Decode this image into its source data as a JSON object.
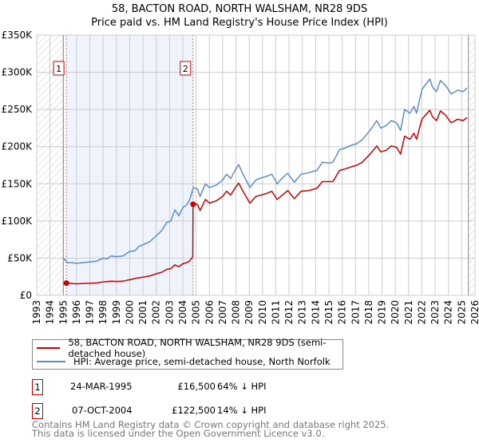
{
  "title_line1": "58, BACTON ROAD, NORTH WALSHAM, NR28 9DS",
  "title_line2": "Price paid vs. HM Land Registry's House Price Index (HPI)",
  "chart_data": {
    "type": "line",
    "title": "58, BACTON ROAD, NORTH WALSHAM, NR28 9DS — Price paid vs. HM Land Registry's House Price Index (HPI)",
    "xlim": [
      1993,
      2026
    ],
    "ylim": [
      0,
      350000
    ],
    "x_ticks": [
      "1993",
      "1994",
      "1995",
      "1996",
      "1997",
      "1998",
      "1999",
      "2000",
      "2001",
      "2002",
      "2003",
      "2004",
      "2005",
      "2006",
      "2007",
      "2008",
      "2009",
      "2010",
      "2011",
      "2012",
      "2013",
      "2014",
      "2015",
      "2016",
      "2017",
      "2018",
      "2019",
      "2020",
      "2021",
      "2022",
      "2023",
      "2024",
      "2025",
      "2026"
    ],
    "y_ticks": [
      {
        "v": 0,
        "label": "£0"
      },
      {
        "v": 50000,
        "label": "£50K"
      },
      {
        "v": 100000,
        "label": "£100K"
      },
      {
        "v": 150000,
        "label": "£150K"
      },
      {
        "v": 200000,
        "label": "£200K"
      },
      {
        "v": 250000,
        "label": "£250K"
      },
      {
        "v": 300000,
        "label": "£300K"
      },
      {
        "v": 350000,
        "label": "£350K"
      }
    ],
    "grid": true,
    "colors": {
      "property": "#cc0000",
      "hpi": "#5b8dd0",
      "shade": "#eef3fc",
      "sale_line": "#ee6666"
    },
    "hatched_before": 1995.0,
    "hatched_after": 2025.5,
    "series": [
      {
        "name": "58, BACTON ROAD, NORTH WALSHAM, NR28 9DS (semi-detached house)",
        "key": "property",
        "points": [
          [
            1995.23,
            16.5
          ],
          [
            1995.6,
            16
          ],
          [
            1996,
            15.5
          ],
          [
            1996.5,
            16
          ],
          [
            1997,
            16.2
          ],
          [
            1997.5,
            16.6
          ],
          [
            1998,
            18
          ],
          [
            1998.6,
            19
          ],
          [
            1999,
            18.7
          ],
          [
            1999.5,
            19
          ],
          [
            2000,
            21
          ],
          [
            2000.7,
            23.7
          ],
          [
            2001,
            24.5
          ],
          [
            2001.5,
            26
          ],
          [
            2002,
            29
          ],
          [
            2002.4,
            31
          ],
          [
            2002.8,
            35
          ],
          [
            2003.1,
            36
          ],
          [
            2003.4,
            41
          ],
          [
            2003.7,
            38.5
          ],
          [
            2004,
            42.5
          ],
          [
            2004.3,
            44
          ],
          [
            2004.5,
            46
          ],
          [
            2004.75,
            52
          ],
          [
            2004.77,
            122.5
          ],
          [
            2005.1,
            122.5
          ],
          [
            2005.3,
            114
          ],
          [
            2005.7,
            129
          ],
          [
            2006,
            124
          ],
          [
            2006.5,
            127
          ],
          [
            2007,
            133
          ],
          [
            2007.3,
            140
          ],
          [
            2007.6,
            135
          ],
          [
            2008,
            146
          ],
          [
            2008.2,
            151
          ],
          [
            2008.5,
            141
          ],
          [
            2009.05,
            124
          ],
          [
            2009.5,
            133
          ],
          [
            2009.9,
            135
          ],
          [
            2010.3,
            137
          ],
          [
            2010.7,
            140
          ],
          [
            2011.1,
            129
          ],
          [
            2011.5,
            135
          ],
          [
            2011.9,
            141
          ],
          [
            2012.4,
            130
          ],
          [
            2012.9,
            140
          ],
          [
            2013.5,
            141
          ],
          [
            2014.1,
            144
          ],
          [
            2014.5,
            153
          ],
          [
            2015,
            153
          ],
          [
            2015.3,
            153
          ],
          [
            2015.8,
            168
          ],
          [
            2016.2,
            170
          ],
          [
            2016.7,
            173
          ],
          [
            2017.1,
            175
          ],
          [
            2017.5,
            179
          ],
          [
            2018.1,
            190
          ],
          [
            2018.6,
            201
          ],
          [
            2018.9,
            193
          ],
          [
            2019.3,
            195
          ],
          [
            2019.7,
            201
          ],
          [
            2020.1,
            199
          ],
          [
            2020.4,
            190
          ],
          [
            2020.7,
            214
          ],
          [
            2021.1,
            210
          ],
          [
            2021.4,
            218
          ],
          [
            2021.6,
            210
          ],
          [
            2022,
            237
          ],
          [
            2022.6,
            249
          ],
          [
            2022.8,
            240
          ],
          [
            2023.1,
            235
          ],
          [
            2023.4,
            248
          ],
          [
            2023.8,
            242
          ],
          [
            2024.2,
            232
          ],
          [
            2024.7,
            237
          ],
          [
            2025.1,
            235
          ],
          [
            2025.4,
            239
          ]
        ]
      },
      {
        "name": "HPI: Average price, semi-detached house, North Norfolk",
        "key": "hpi",
        "points": [
          [
            1995.0,
            50
          ],
          [
            1995.3,
            44
          ],
          [
            1995.6,
            44
          ],
          [
            1996.0,
            43
          ],
          [
            1996.5,
            44
          ],
          [
            1997.0,
            45
          ],
          [
            1997.5,
            46
          ],
          [
            1998.0,
            50
          ],
          [
            1998.3,
            49
          ],
          [
            1998.6,
            53
          ],
          [
            1999.0,
            52
          ],
          [
            1999.5,
            53
          ],
          [
            2000.0,
            59
          ],
          [
            2000.4,
            60
          ],
          [
            2000.7,
            66
          ],
          [
            2001.0,
            68
          ],
          [
            2001.5,
            72
          ],
          [
            2002.0,
            80
          ],
          [
            2002.4,
            87
          ],
          [
            2002.8,
            98
          ],
          [
            2003.1,
            100
          ],
          [
            2003.4,
            115
          ],
          [
            2003.7,
            107
          ],
          [
            2004.0,
            118
          ],
          [
            2004.3,
            122
          ],
          [
            2004.5,
            128
          ],
          [
            2004.8,
            145
          ],
          [
            2005.1,
            143
          ],
          [
            2005.3,
            133
          ],
          [
            2005.7,
            150
          ],
          [
            2006.0,
            145
          ],
          [
            2006.5,
            148
          ],
          [
            2007.0,
            155
          ],
          [
            2007.3,
            163
          ],
          [
            2007.6,
            157
          ],
          [
            2008.0,
            170
          ],
          [
            2008.2,
            176
          ],
          [
            2008.5,
            164
          ],
          [
            2009.05,
            145
          ],
          [
            2009.5,
            155
          ],
          [
            2009.9,
            158
          ],
          [
            2010.3,
            160
          ],
          [
            2010.7,
            163
          ],
          [
            2011.1,
            150
          ],
          [
            2011.5,
            158
          ],
          [
            2011.9,
            164
          ],
          [
            2012.4,
            152
          ],
          [
            2012.9,
            163
          ],
          [
            2013.5,
            165
          ],
          [
            2014.1,
            168
          ],
          [
            2014.5,
            179
          ],
          [
            2015.0,
            178
          ],
          [
            2015.3,
            179
          ],
          [
            2015.8,
            196
          ],
          [
            2016.2,
            198
          ],
          [
            2016.7,
            202
          ],
          [
            2017.1,
            204
          ],
          [
            2017.5,
            209
          ],
          [
            2018.1,
            222
          ],
          [
            2018.6,
            235
          ],
          [
            2018.9,
            225
          ],
          [
            2019.3,
            228
          ],
          [
            2019.7,
            235
          ],
          [
            2020.1,
            232
          ],
          [
            2020.4,
            222
          ],
          [
            2020.7,
            250
          ],
          [
            2021.1,
            245
          ],
          [
            2021.4,
            254
          ],
          [
            2021.6,
            245
          ],
          [
            2022.0,
            277
          ],
          [
            2022.6,
            291
          ],
          [
            2022.8,
            280
          ],
          [
            2023.1,
            274
          ],
          [
            2023.4,
            289
          ],
          [
            2023.8,
            282
          ],
          [
            2024.2,
            271
          ],
          [
            2024.7,
            276
          ],
          [
            2025.1,
            274
          ],
          [
            2025.4,
            279
          ]
        ]
      }
    ],
    "value_unit": "thousands GBP",
    "sales": [
      {
        "label": "1",
        "x": 1995.23,
        "value": 16.5
      },
      {
        "label": "2",
        "x": 2004.77,
        "value": 122.5
      }
    ]
  },
  "legend": {
    "property": "58, BACTON ROAD, NORTH WALSHAM, NR28 9DS (semi-detached house)",
    "hpi": "HPI: Average price, semi-detached house, North Norfolk"
  },
  "transactions": [
    {
      "num": "1",
      "date": "24-MAR-1995",
      "price": "£16,500",
      "diff": "64% ↓ HPI"
    },
    {
      "num": "2",
      "date": "07-OCT-2004",
      "price": "£122,500",
      "diff": "14% ↓ HPI"
    }
  ],
  "footer": {
    "line1": "Contains HM Land Registry data © Crown copyright and database right 2025.",
    "line2": "This data is licensed under the Open Government Licence v3.0."
  }
}
